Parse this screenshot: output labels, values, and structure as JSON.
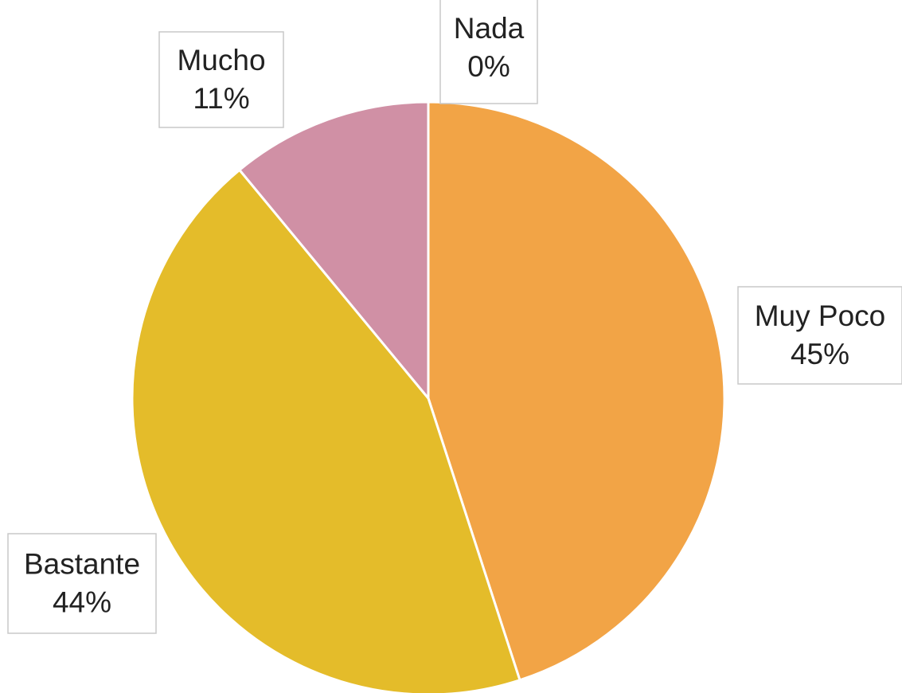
{
  "chart_data": {
    "type": "pie",
    "categories": [
      "Nada",
      "Muy Poco",
      "Bastante",
      "Mucho"
    ],
    "values": [
      0,
      45,
      44,
      11
    ],
    "value_labels": [
      "0%",
      "45%",
      "44%",
      "11%"
    ],
    "colors": [
      "#5b9bd5",
      "#f2a446",
      "#e4bc2a",
      "#d090a5"
    ]
  }
}
